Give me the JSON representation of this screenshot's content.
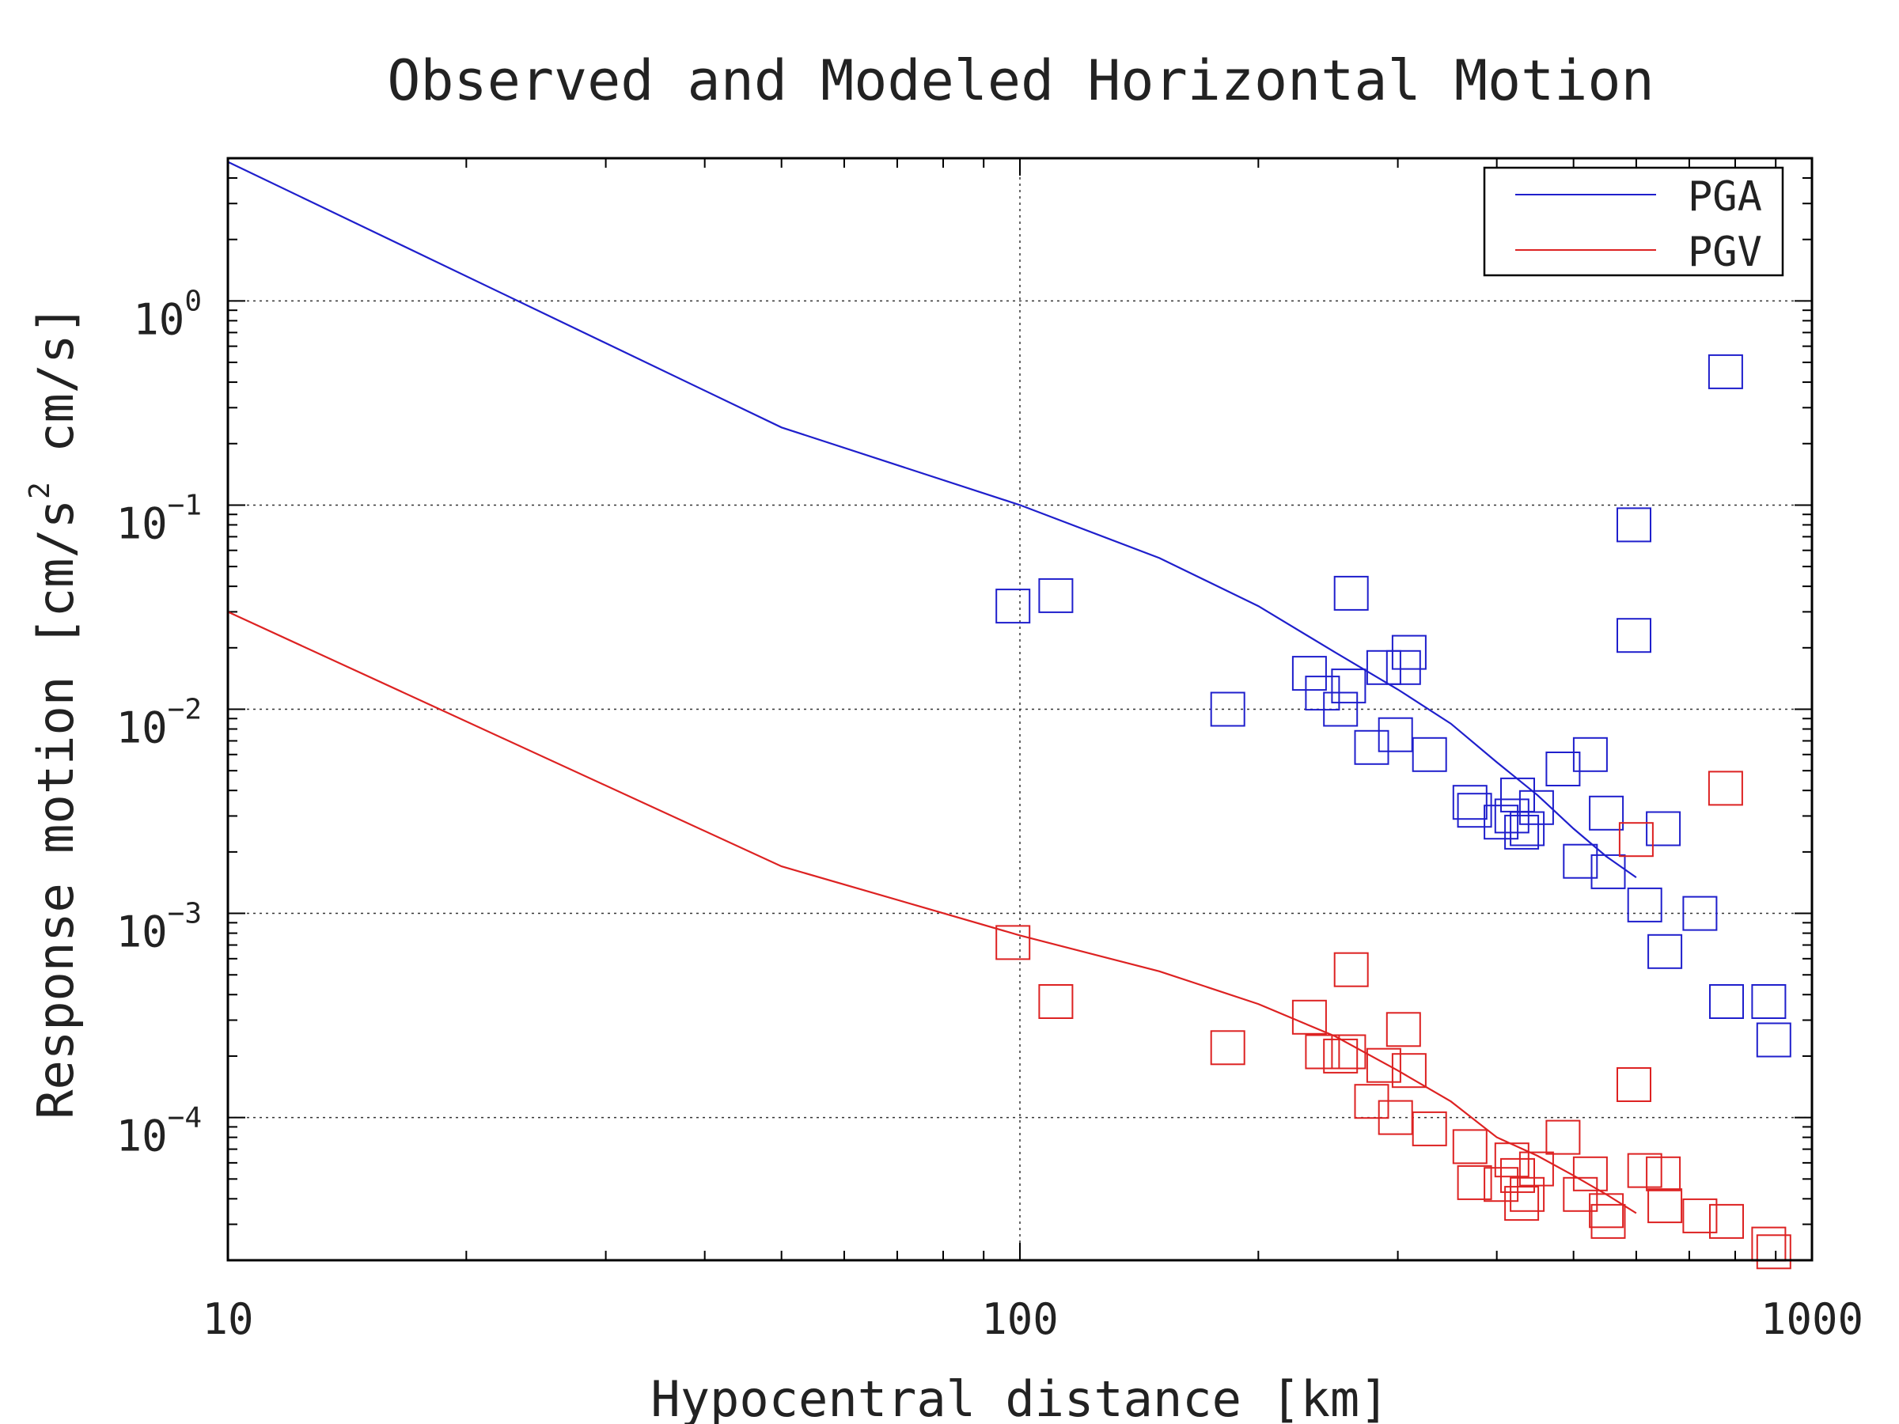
{
  "chart_data": {
    "type": "scatter",
    "title": "Observed and Modeled Horizontal Motion",
    "xlabel": "Hypocentral distance [km]",
    "ylabel": "Response motion  [cm/s2  cm/s]",
    "ylabel_parts": {
      "prefix": "Response motion  [cm/s",
      "sup": "2",
      "suffix": "  cm/s]"
    },
    "x_scale": "log",
    "y_scale": "log",
    "xlim": [
      10,
      1000
    ],
    "ylim": [
      2e-05,
      5
    ],
    "grid": true,
    "legend_position": "top-right",
    "x_ticks": [
      {
        "value": 10,
        "label": "10"
      },
      {
        "value": 100,
        "label": "100"
      },
      {
        "value": 1000,
        "label": "1000"
      }
    ],
    "y_ticks": [
      {
        "value": 1,
        "base": "10",
        "exp": "0"
      },
      {
        "value": 0.1,
        "base": "10",
        "exp": "−1"
      },
      {
        "value": 0.01,
        "base": "10",
        "exp": "−2"
      },
      {
        "value": 0.001,
        "base": "10",
        "exp": "−3"
      },
      {
        "value": 0.0001,
        "base": "10",
        "exp": "−4"
      }
    ],
    "model_lines": [
      {
        "name": "PGA",
        "color": "#1f1fcc",
        "points": [
          [
            10,
            4.8
          ],
          [
            50,
            0.24
          ],
          [
            100,
            0.1
          ],
          [
            150,
            0.055
          ],
          [
            200,
            0.032
          ],
          [
            250,
            0.019
          ],
          [
            300,
            0.0125
          ],
          [
            350,
            0.0085
          ],
          [
            400,
            0.0055
          ],
          [
            450,
            0.0038
          ],
          [
            500,
            0.0026
          ],
          [
            550,
            0.0019
          ],
          [
            600,
            0.0015
          ]
        ]
      },
      {
        "name": "PGV",
        "color": "#dd2222",
        "points": [
          [
            10,
            0.03
          ],
          [
            50,
            0.0017
          ],
          [
            100,
            0.00078
          ],
          [
            150,
            0.00052
          ],
          [
            200,
            0.00036
          ],
          [
            250,
            0.00025
          ],
          [
            300,
            0.00017
          ],
          [
            350,
            0.00012
          ],
          [
            400,
            8e-05
          ],
          [
            450,
            6.5e-05
          ],
          [
            500,
            5.2e-05
          ],
          [
            550,
            4.2e-05
          ],
          [
            600,
            3.4e-05
          ]
        ]
      }
    ],
    "observed": [
      {
        "name": "PGA observed",
        "color": "#1f1fcc",
        "points": [
          [
            98,
            0.032
          ],
          [
            111,
            0.036
          ],
          [
            183,
            0.01
          ],
          [
            232,
            0.015
          ],
          [
            241,
            0.012
          ],
          [
            254,
            0.01
          ],
          [
            262,
            0.037
          ],
          [
            260,
            0.013
          ],
          [
            278,
            0.0065
          ],
          [
            288,
            0.016
          ],
          [
            298,
            0.0075
          ],
          [
            305,
            0.016
          ],
          [
            310,
            0.019
          ],
          [
            329,
            0.006
          ],
          [
            370,
            0.0035
          ],
          [
            375,
            0.0032
          ],
          [
            405,
            0.0028
          ],
          [
            418,
            0.003
          ],
          [
            425,
            0.0038
          ],
          [
            430,
            0.0025
          ],
          [
            437,
            0.0026
          ],
          [
            449,
            0.0033
          ],
          [
            485,
            0.0051
          ],
          [
            510,
            0.0018
          ],
          [
            525,
            0.006
          ],
          [
            550,
            0.0031
          ],
          [
            553,
            0.0016
          ],
          [
            596,
            0.08
          ],
          [
            596,
            0.023
          ],
          [
            615,
            0.0011
          ],
          [
            649,
            0.0026
          ],
          [
            652,
            0.00065
          ],
          [
            722,
            0.001
          ],
          [
            778,
            0.45
          ],
          [
            780,
            0.00037
          ],
          [
            882,
            0.00037
          ],
          [
            895,
            0.00024
          ]
        ]
      },
      {
        "name": "PGV observed",
        "color": "#dd2222",
        "points": [
          [
            98,
            0.00072
          ],
          [
            111,
            0.00037
          ],
          [
            183,
            0.00022
          ],
          [
            232,
            0.00031
          ],
          [
            241,
            0.00021
          ],
          [
            254,
            0.0002
          ],
          [
            262,
            0.00053
          ],
          [
            260,
            0.00021
          ],
          [
            278,
            0.00012
          ],
          [
            288,
            0.00018
          ],
          [
            298,
            0.0001
          ],
          [
            305,
            0.00027
          ],
          [
            310,
            0.00017
          ],
          [
            329,
            8.8e-05
          ],
          [
            370,
            7.2e-05
          ],
          [
            375,
            4.8e-05
          ],
          [
            405,
            4.7e-05
          ],
          [
            418,
            6.2e-05
          ],
          [
            425,
            5.2e-05
          ],
          [
            430,
            3.8e-05
          ],
          [
            437,
            4.2e-05
          ],
          [
            449,
            5.6e-05
          ],
          [
            485,
            8e-05
          ],
          [
            510,
            4.2e-05
          ],
          [
            525,
            5.3e-05
          ],
          [
            550,
            3.5e-05
          ],
          [
            553,
            3.1e-05
          ],
          [
            596,
            0.000145
          ],
          [
            600,
            0.0023
          ],
          [
            615,
            5.5e-05
          ],
          [
            649,
            5.3e-05
          ],
          [
            652,
            3.7e-05
          ],
          [
            722,
            3.3e-05
          ],
          [
            778,
            0.0041
          ],
          [
            780,
            3.1e-05
          ],
          [
            882,
            2.4e-05
          ],
          [
            895,
            2.2e-05
          ]
        ]
      }
    ]
  }
}
